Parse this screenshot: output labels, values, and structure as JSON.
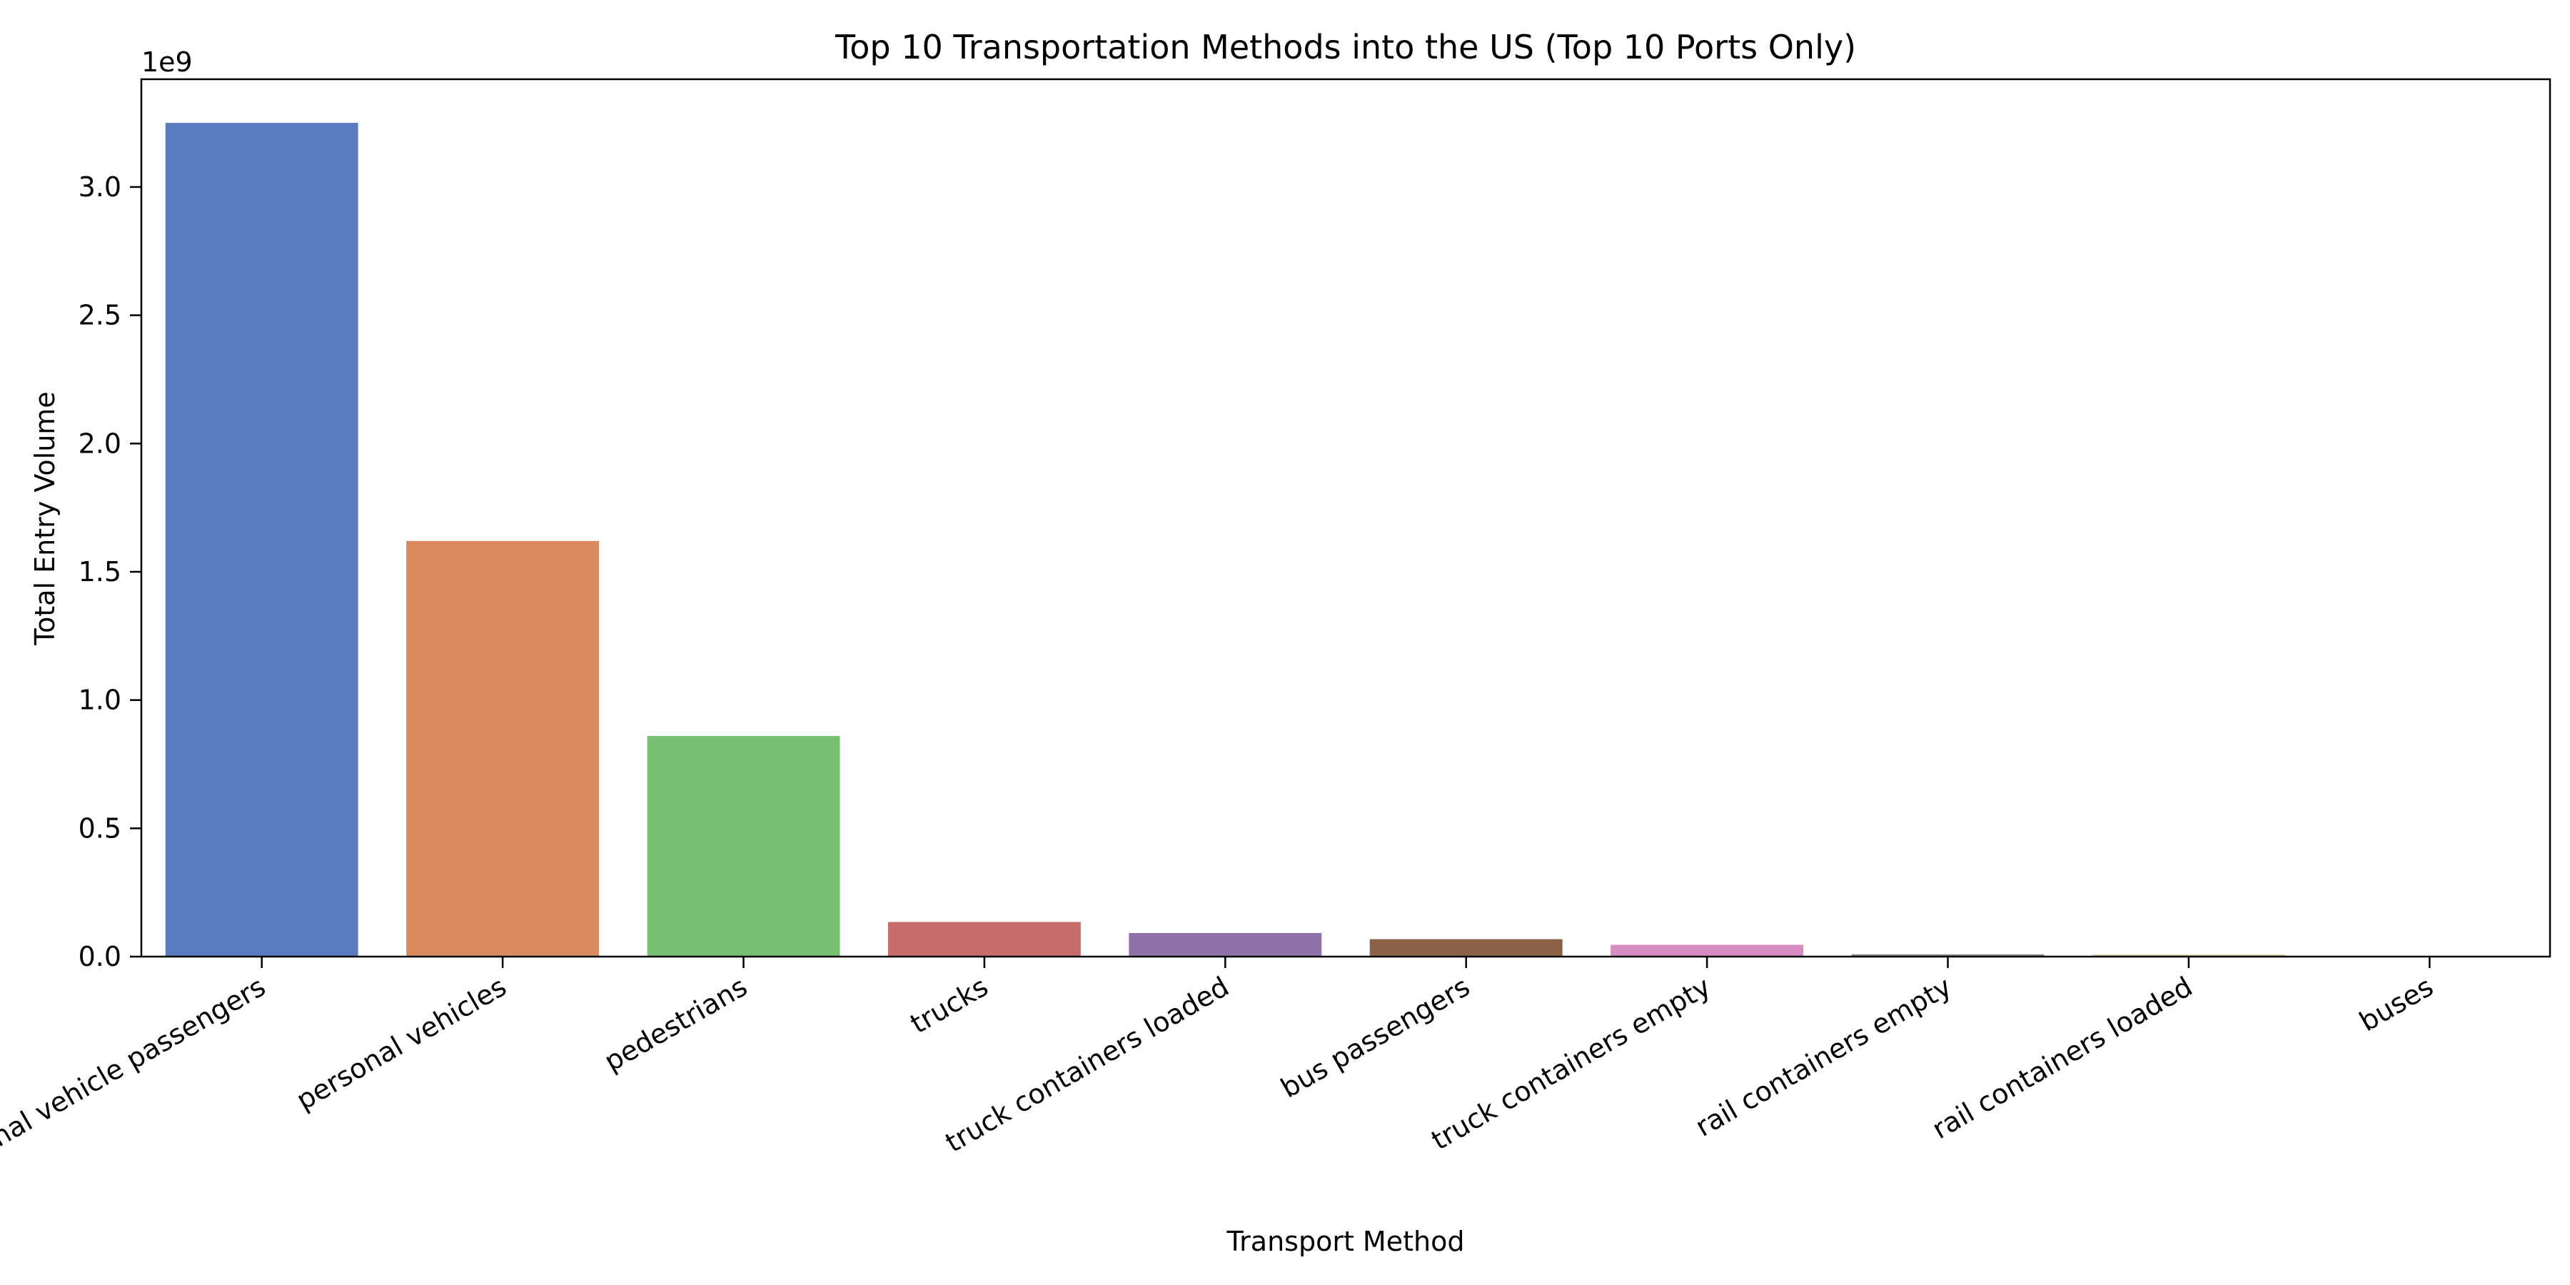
{
  "chart_data": {
    "type": "bar",
    "title": "Top 10 Transportation Methods into the US (Top 10 Ports Only)",
    "xlabel": "Transport Method",
    "ylabel": "Total Entry Volume",
    "offset_label": "1e9",
    "categories": [
      "personal vehicle passengers",
      "personal vehicles",
      "pedestrians",
      "trucks",
      "truck containers loaded",
      "bus passengers",
      "truck containers empty",
      "rail containers empty",
      "rail containers loaded",
      "buses"
    ],
    "values": [
      3250000000,
      1620000000,
      860000000,
      135000000,
      92000000,
      68000000,
      46000000,
      9000000,
      7000000,
      3000000
    ],
    "colors": [
      "#5b7cc0",
      "#d98a5f",
      "#77c070",
      "#c76d6b",
      "#8f72aa",
      "#8a6347",
      "#d68cc3",
      "#8c8c8c",
      "#cdc36f",
      "#7bc6d8"
    ],
    "ylim": [
      0,
      3420000000
    ],
    "yticks": [
      0,
      500000000,
      1000000000,
      1500000000,
      2000000000,
      2500000000,
      3000000000
    ],
    "ytick_labels": [
      "0.0",
      "0.5",
      "1.0",
      "1.5",
      "2.0",
      "2.5",
      "3.0"
    ],
    "grid": false,
    "legend": "none"
  }
}
